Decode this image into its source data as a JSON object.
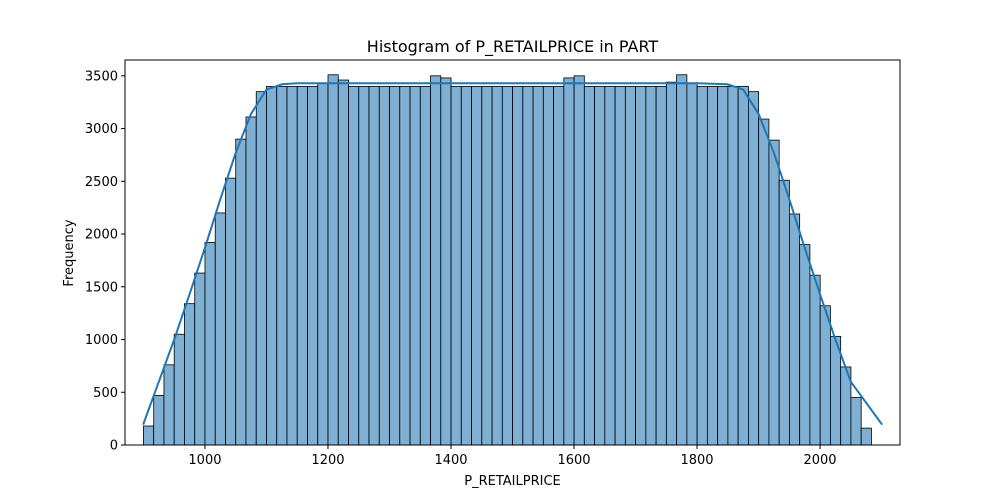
{
  "chart_data": {
    "type": "bar",
    "title": "Histogram of P_RETAILPRICE in PART",
    "xlabel": "P_RETAILPRICE",
    "ylabel": "Frequency",
    "xlim": [
      870,
      2130
    ],
    "ylim": [
      0,
      3650
    ],
    "xticks": [
      1000,
      1200,
      1400,
      1600,
      1800,
      2000
    ],
    "yticks": [
      0,
      500,
      1000,
      1500,
      2000,
      2500,
      3000,
      3500
    ],
    "grid": false,
    "bin_start": 900,
    "bin_width": 16.67,
    "values": [
      180,
      470,
      760,
      1050,
      1340,
      1630,
      1920,
      2200,
      2530,
      2900,
      3110,
      3350,
      3400,
      3400,
      3400,
      3400,
      3400,
      3430,
      3510,
      3460,
      3400,
      3400,
      3400,
      3400,
      3400,
      3400,
      3400,
      3400,
      3500,
      3480,
      3400,
      3400,
      3400,
      3400,
      3400,
      3400,
      3400,
      3400,
      3400,
      3400,
      3400,
      3480,
      3500,
      3400,
      3400,
      3400,
      3400,
      3400,
      3400,
      3400,
      3400,
      3440,
      3510,
      3430,
      3400,
      3400,
      3400,
      3400,
      3400,
      3350,
      3090,
      2890,
      2510,
      2190,
      1900,
      1610,
      1320,
      1030,
      740,
      450,
      160
    ],
    "kde": {
      "x": [
        900,
        925,
        950,
        975,
        1000,
        1025,
        1050,
        1075,
        1100,
        1125,
        1150,
        1200,
        1300,
        1400,
        1500,
        1600,
        1700,
        1800,
        1850,
        1875,
        1900,
        1925,
        1950,
        1975,
        2000,
        2025,
        2050,
        2075,
        2100
      ],
      "y": [
        200,
        600,
        1000,
        1430,
        1870,
        2330,
        2770,
        3140,
        3370,
        3420,
        3430,
        3430,
        3430,
        3430,
        3430,
        3430,
        3430,
        3430,
        3420,
        3370,
        3140,
        2770,
        2330,
        1870,
        1430,
        1000,
        600,
        400,
        200
      ]
    },
    "colors": {
      "bar_fill": "#7fafd2",
      "bar_edge": "#000000",
      "kde_line": "#1f77b4"
    }
  }
}
